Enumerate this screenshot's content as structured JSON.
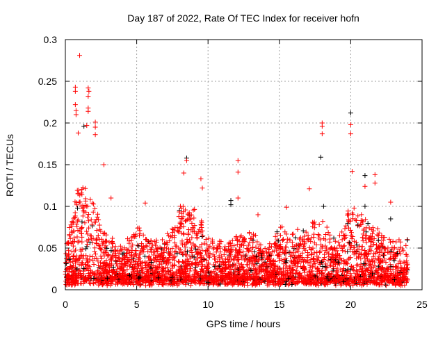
{
  "chart_data": {
    "type": "scatter",
    "title": "Day 187 of 2022, Rate Of TEC Index for receiver hofn",
    "xlabel": "GPS time / hours",
    "ylabel": "ROTI / TECUs",
    "xlim": [
      0,
      25
    ],
    "ylim": [
      0,
      0.3
    ],
    "xticks": [
      0,
      5,
      10,
      15,
      20,
      25
    ],
    "yticks": [
      0,
      0.05,
      0.1,
      0.15,
      0.2,
      0.25,
      0.3
    ],
    "xtick_labels": [
      "0",
      "5",
      "10",
      "15",
      "20",
      "25"
    ],
    "ytick_labels": [
      "0",
      "0.05",
      "0.1",
      "0.15",
      "0.2",
      "0.25",
      "0.3"
    ],
    "grid": true,
    "marker": "plus",
    "colors": {
      "primary": "#ff0000",
      "secondary": "#000000",
      "grid": "#a0a0a0"
    },
    "data_range_hours": [
      0,
      24
    ],
    "hourly_envelope": [
      0.05,
      0.14,
      0.11,
      0.07,
      0.05,
      0.08,
      0.06,
      0.06,
      0.1,
      0.1,
      0.07,
      0.06,
      0.07,
      0.07,
      0.05,
      0.08,
      0.07,
      0.08,
      0.09,
      0.06,
      0.1,
      0.09,
      0.07,
      0.06
    ],
    "baseline": 0.012,
    "peaks": [
      {
        "x": 1.0,
        "y": 0.281,
        "c": "primary"
      },
      {
        "x": 0.7,
        "y": 0.243,
        "c": "primary"
      },
      {
        "x": 0.7,
        "y": 0.238,
        "c": "primary"
      },
      {
        "x": 0.7,
        "y": 0.222,
        "c": "primary"
      },
      {
        "x": 0.75,
        "y": 0.215,
        "c": "primary"
      },
      {
        "x": 0.75,
        "y": 0.21,
        "c": "primary"
      },
      {
        "x": 1.6,
        "y": 0.242,
        "c": "primary"
      },
      {
        "x": 1.65,
        "y": 0.238,
        "c": "primary"
      },
      {
        "x": 1.6,
        "y": 0.232,
        "c": "primary"
      },
      {
        "x": 1.6,
        "y": 0.218,
        "c": "primary"
      },
      {
        "x": 1.6,
        "y": 0.214,
        "c": "primary"
      },
      {
        "x": 2.1,
        "y": 0.201,
        "c": "primary"
      },
      {
        "x": 2.1,
        "y": 0.195,
        "c": "primary"
      },
      {
        "x": 1.5,
        "y": 0.197,
        "c": "primary"
      },
      {
        "x": 1.3,
        "y": 0.196,
        "c": "secondary"
      },
      {
        "x": 2.1,
        "y": 0.186,
        "c": "primary"
      },
      {
        "x": 0.9,
        "y": 0.188,
        "c": "primary"
      },
      {
        "x": 2.7,
        "y": 0.15,
        "c": "primary"
      },
      {
        "x": 8.5,
        "y": 0.158,
        "c": "secondary"
      },
      {
        "x": 8.5,
        "y": 0.155,
        "c": "primary"
      },
      {
        "x": 8.3,
        "y": 0.14,
        "c": "primary"
      },
      {
        "x": 9.5,
        "y": 0.133,
        "c": "primary"
      },
      {
        "x": 9.6,
        "y": 0.122,
        "c": "primary"
      },
      {
        "x": 12.1,
        "y": 0.155,
        "c": "primary"
      },
      {
        "x": 12.1,
        "y": 0.141,
        "c": "primary"
      },
      {
        "x": 12.1,
        "y": 0.11,
        "c": "primary"
      },
      {
        "x": 11.6,
        "y": 0.107,
        "c": "secondary"
      },
      {
        "x": 11.6,
        "y": 0.102,
        "c": "secondary"
      },
      {
        "x": 18.0,
        "y": 0.2,
        "c": "primary"
      },
      {
        "x": 18.0,
        "y": 0.196,
        "c": "primary"
      },
      {
        "x": 18.0,
        "y": 0.187,
        "c": "primary"
      },
      {
        "x": 17.9,
        "y": 0.159,
        "c": "secondary"
      },
      {
        "x": 20.0,
        "y": 0.212,
        "c": "secondary"
      },
      {
        "x": 20.0,
        "y": 0.198,
        "c": "primary"
      },
      {
        "x": 20.0,
        "y": 0.187,
        "c": "primary"
      },
      {
        "x": 20.1,
        "y": 0.142,
        "c": "primary"
      },
      {
        "x": 21.0,
        "y": 0.137,
        "c": "secondary"
      },
      {
        "x": 21.0,
        "y": 0.124,
        "c": "primary"
      },
      {
        "x": 21.7,
        "y": 0.138,
        "c": "primary"
      },
      {
        "x": 21.7,
        "y": 0.128,
        "c": "primary"
      },
      {
        "x": 22.8,
        "y": 0.105,
        "c": "primary"
      },
      {
        "x": 21.0,
        "y": 0.1,
        "c": "secondary"
      },
      {
        "x": 17.1,
        "y": 0.121,
        "c": "primary"
      },
      {
        "x": 18.1,
        "y": 0.1,
        "c": "secondary"
      },
      {
        "x": 22.8,
        "y": 0.085,
        "c": "secondary"
      },
      {
        "x": 13.5,
        "y": 0.09,
        "c": "primary"
      },
      {
        "x": 15.5,
        "y": 0.099,
        "c": "primary"
      },
      {
        "x": 5.6,
        "y": 0.104,
        "c": "primary"
      },
      {
        "x": 3.2,
        "y": 0.11,
        "c": "primary"
      }
    ]
  }
}
